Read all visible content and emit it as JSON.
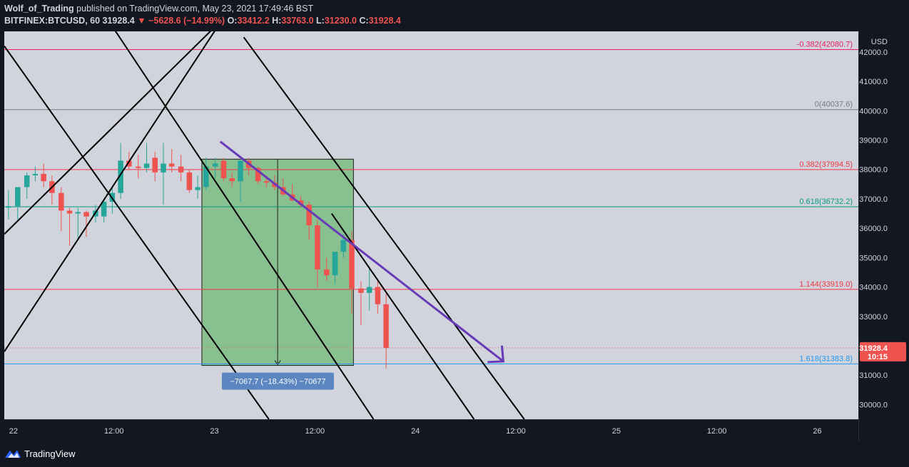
{
  "header": {
    "author": "Wolf_of_Trading",
    "published": "published on TradingView.com, May 23, 2021 17:49:46 BST",
    "symbol": "BITFINEX:BTCUSD, 60",
    "last": "31928.4",
    "change": "−5628.6 (−14.99%)",
    "o_label": "O:",
    "o_val": "33412.2",
    "h_label": "H:",
    "h_val": "33763.0",
    "l_label": "L:",
    "l_val": "31230.0",
    "c_label": "C:",
    "c_val": "31928.4"
  },
  "footer": {
    "brand": "TradingView"
  },
  "colors": {
    "bg": "#d1d4dc",
    "up": "#26a69a",
    "down": "#ef5350",
    "axis_bg": "#131722",
    "arrow": "#673ab7",
    "box": "#4caf50",
    "fib_top": "#e91e63",
    "fib_gray": "#787b86",
    "fib_red": "#f23645",
    "fib_teal": "#089981",
    "fib_blue": "#2196f3"
  },
  "chart_data": {
    "type": "candlestick",
    "y_unit": "USD",
    "ylim": [
      29500,
      42700
    ],
    "y_ticks": [
      30000,
      31000,
      32000,
      33000,
      34000,
      35000,
      36000,
      37000,
      38000,
      39000,
      40000,
      41000,
      42000
    ],
    "y_tick_labels": [
      "30000.0",
      "31000.0",
      "32000.0",
      "33000.0",
      "34000.0",
      "35000.0",
      "36000.0",
      "37000.0",
      "38000.0",
      "39000.0",
      "40000.0",
      "41000.0",
      "42000.0"
    ],
    "x_ticks": [
      {
        "h": 0,
        "label": "22"
      },
      {
        "h": 12,
        "label": "12:00"
      },
      {
        "h": 24,
        "label": "23"
      },
      {
        "h": 36,
        "label": "12:00"
      },
      {
        "h": 48,
        "label": "24"
      },
      {
        "h": 60,
        "label": "12:00"
      },
      {
        "h": 72,
        "label": "25"
      },
      {
        "h": 84,
        "label": "12:00"
      },
      {
        "h": 96,
        "label": "26"
      }
    ],
    "x_range_hours": [
      -1.1,
      100.9
    ],
    "candles": [
      [
        -0.6,
        36700,
        37300,
        36300,
        36750
      ],
      [
        0.5,
        36750,
        37400,
        36300,
        37400
      ],
      [
        1.6,
        37400,
        37900,
        37000,
        37800
      ],
      [
        2.6,
        37800,
        38100,
        37600,
        37850
      ],
      [
        3.6,
        37850,
        38200,
        37400,
        37600
      ],
      [
        4.6,
        37600,
        37800,
        36800,
        37200
      ],
      [
        5.7,
        37200,
        37400,
        35900,
        36600
      ],
      [
        6.7,
        36600,
        36700,
        35400,
        36500
      ],
      [
        7.7,
        36500,
        36700,
        35600,
        36550
      ],
      [
        8.7,
        36550,
        36600,
        35700,
        36400
      ],
      [
        9.8,
        36400,
        36800,
        36200,
        36600
      ],
      [
        10.8,
        36400,
        37000,
        36200,
        36900
      ],
      [
        11.8,
        36900,
        37400,
        36500,
        37200
      ],
      [
        12.8,
        37200,
        38900,
        37000,
        38300
      ],
      [
        13.8,
        38300,
        38600,
        38000,
        38100
      ],
      [
        14.9,
        38100,
        38500,
        37700,
        38050
      ],
      [
        15.9,
        38050,
        38900,
        37900,
        38200
      ],
      [
        16.9,
        38400,
        38600,
        37600,
        37900
      ],
      [
        17.9,
        37900,
        38900,
        36800,
        38200
      ],
      [
        18.9,
        38200,
        38700,
        37900,
        38100
      ],
      [
        20.0,
        38100,
        38500,
        37600,
        37900
      ],
      [
        21.0,
        37900,
        38000,
        37200,
        37300
      ],
      [
        22.0,
        37300,
        37800,
        37000,
        37400
      ],
      [
        23.0,
        37400,
        38400,
        37300,
        38100
      ],
      [
        24.1,
        38100,
        38400,
        37700,
        38200
      ],
      [
        25.1,
        38300,
        38400,
        37600,
        37700
      ],
      [
        26.1,
        37700,
        37900,
        37400,
        37600
      ],
      [
        27.1,
        37600,
        38300,
        36900,
        38300
      ],
      [
        28.1,
        38300,
        38400,
        37800,
        38050
      ],
      [
        29.2,
        38050,
        38100,
        37500,
        37600
      ],
      [
        30.2,
        37600,
        37800,
        37400,
        37550
      ],
      [
        31.2,
        37550,
        37800,
        37300,
        37400
      ],
      [
        32.2,
        37400,
        37700,
        37100,
        37150
      ],
      [
        33.3,
        37150,
        37500,
        36900,
        36950
      ],
      [
        34.3,
        36950,
        37100,
        36700,
        36800
      ],
      [
        35.3,
        36800,
        36900,
        35600,
        36100
      ],
      [
        36.3,
        36100,
        36300,
        34000,
        34600
      ],
      [
        37.4,
        34600,
        35000,
        34200,
        34400
      ],
      [
        38.4,
        34400,
        35200,
        34100,
        35200
      ],
      [
        39.4,
        35200,
        35800,
        35000,
        35600
      ],
      [
        40.4,
        35600,
        35900,
        33100,
        33950
      ],
      [
        41.5,
        33950,
        34200,
        32700,
        33800
      ],
      [
        42.5,
        33800,
        34700,
        33200,
        34000
      ],
      [
        43.5,
        34000,
        34200,
        33100,
        33412
      ],
      [
        44.5,
        33412,
        33763,
        31230,
        31928.4
      ]
    ],
    "fib_levels": [
      {
        "label": "-0.382(42080.7)",
        "value": 42080.7,
        "color": "#e91e63"
      },
      {
        "label": "0(40037.6)",
        "value": 40037.6,
        "color": "#787b86"
      },
      {
        "label": "0.382(37994.5)",
        "value": 37994.5,
        "color": "#f23645"
      },
      {
        "label": "0.618(36732.2)",
        "value": 36732.2,
        "color": "#089981"
      },
      {
        "label": "1.144(33919.0)",
        "value": 33919.0,
        "color": "#f23645"
      },
      {
        "label": "1.618(31383.8)",
        "value": 31383.8,
        "color": "#2196f3"
      }
    ],
    "current_price": {
      "label": "31928.4",
      "countdown": "10:15",
      "value": 31928.4
    },
    "measure": {
      "label": "−7067.7 (−18.43%) −70677",
      "from_h": 22.5,
      "to_h": 40.6,
      "top": 38350,
      "bottom": 31330
    },
    "trend_arrow": {
      "x1_h": 24.7,
      "y1": 38950,
      "x2_h": 58.5,
      "y2": 31470
    },
    "channel_lines": [
      {
        "x1_h": -1.1,
        "y1": 35800,
        "x2_h": 26.0,
        "y2": 43400
      },
      {
        "x1_h": -1.1,
        "y1": 31800,
        "x2_h": 27.0,
        "y2": 44000
      },
      {
        "x1_h": -1.1,
        "y1": 42200,
        "x2_h": 30.5,
        "y2": 29500
      },
      {
        "x1_h": 11.5,
        "y1": 43000,
        "x2_h": 43.0,
        "y2": 29500
      },
      {
        "x1_h": 27.5,
        "y1": 42500,
        "x2_h": 61.0,
        "y2": 29500
      },
      {
        "x1_h": 38.0,
        "y1": 36500,
        "x2_h": 55.0,
        "y2": 29500
      }
    ]
  }
}
